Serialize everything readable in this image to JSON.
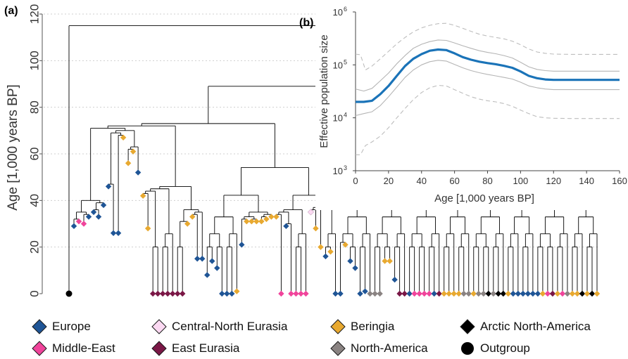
{
  "chart_data": [
    {
      "panel": "(a)",
      "type": "tree",
      "ylabel": "Age [1,000 years BP]",
      "yticks": [
        0,
        20,
        40,
        60,
        80,
        100,
        120
      ],
      "ylim": [
        0,
        120
      ],
      "grid": true,
      "tips": [
        {
          "region": "Outgroup",
          "age": 0
        },
        {
          "region": "Europe",
          "age": 29
        },
        {
          "region": "Middle-East",
          "age": 31
        },
        {
          "region": "Middle-East",
          "age": 30
        },
        {
          "region": "Europe",
          "age": 33
        },
        {
          "region": "Europe",
          "age": 35
        },
        {
          "region": "Europe",
          "age": 33
        },
        {
          "region": "Europe",
          "age": 38
        },
        {
          "region": "Europe",
          "age": 46
        },
        {
          "region": "Europe",
          "age": 26
        },
        {
          "region": "Europe",
          "age": 26
        },
        {
          "region": "Beringia",
          "age": 67
        },
        {
          "region": "Beringia",
          "age": 56
        },
        {
          "region": "Beringia",
          "age": 61
        },
        {
          "region": "Europe",
          "age": 52
        },
        {
          "region": "Beringia",
          "age": 42
        },
        {
          "region": "Beringia",
          "age": 28
        },
        {
          "region": "East Eurasia",
          "age": 0
        },
        {
          "region": "East Eurasia",
          "age": 0
        },
        {
          "region": "East Eurasia",
          "age": 0
        },
        {
          "region": "East Eurasia",
          "age": 0
        },
        {
          "region": "East Eurasia",
          "age": 0
        },
        {
          "region": "East Eurasia",
          "age": 0
        },
        {
          "region": "East Eurasia",
          "age": 0
        },
        {
          "region": "Beringia",
          "age": 30
        },
        {
          "region": "Beringia",
          "age": 33
        },
        {
          "region": "Europe",
          "age": 15
        },
        {
          "region": "Europe",
          "age": 15
        },
        {
          "region": "Europe",
          "age": 8
        },
        {
          "region": "Europe",
          "age": 14
        },
        {
          "region": "Europe",
          "age": 11
        },
        {
          "region": "Europe",
          "age": 0
        },
        {
          "region": "Europe",
          "age": 0
        },
        {
          "region": "Europe",
          "age": 0
        },
        {
          "region": "Beringia",
          "age": 1
        },
        {
          "region": "Europe",
          "age": 21
        },
        {
          "region": "Beringia",
          "age": 31
        },
        {
          "region": "Beringia",
          "age": 31
        },
        {
          "region": "Beringia",
          "age": 31
        },
        {
          "region": "Beringia",
          "age": 31
        },
        {
          "region": "Beringia",
          "age": 32
        },
        {
          "region": "Beringia",
          "age": 33
        },
        {
          "region": "Beringia",
          "age": 33
        },
        {
          "region": "Middle-East",
          "age": 0
        },
        {
          "region": "Europe",
          "age": 29
        },
        {
          "region": "Middle-East",
          "age": 0
        },
        {
          "region": "Middle-East",
          "age": 0
        },
        {
          "region": "Middle-East",
          "age": 0
        },
        {
          "region": "Middle-East",
          "age": 0
        },
        {
          "region": "Central-North Eurasia",
          "age": 35
        },
        {
          "region": "Beringia",
          "age": 28
        },
        {
          "region": "Beringia",
          "age": 20
        },
        {
          "region": "Europe",
          "age": 16
        },
        {
          "region": "Beringia",
          "age": 18
        },
        {
          "region": "Europe",
          "age": 0
        },
        {
          "region": "Europe",
          "age": 0
        },
        {
          "region": "Beringia",
          "age": 21
        },
        {
          "region": "Europe",
          "age": 14
        },
        {
          "region": "Europe",
          "age": 11
        },
        {
          "region": "Europe",
          "age": 0
        },
        {
          "region": "Europe",
          "age": 1
        },
        {
          "region": "North-America",
          "age": 0
        },
        {
          "region": "North-America",
          "age": 0
        },
        {
          "region": "North-America",
          "age": 0
        },
        {
          "region": "Beringia",
          "age": 14
        },
        {
          "region": "Beringia",
          "age": 14
        },
        {
          "region": "Europe",
          "age": 6
        },
        {
          "region": "East Eurasia",
          "age": 0
        },
        {
          "region": "East Eurasia",
          "age": 0
        },
        {
          "region": "Europe",
          "age": 0
        },
        {
          "region": "Middle-East",
          "age": 0
        },
        {
          "region": "Middle-East",
          "age": 0
        },
        {
          "region": "Middle-East",
          "age": 0
        },
        {
          "region": "Middle-East",
          "age": 0
        },
        {
          "region": "Europe",
          "age": 0
        },
        {
          "region": "East Eurasia",
          "age": 0
        },
        {
          "region": "Beringia",
          "age": 0
        },
        {
          "region": "Beringia",
          "age": 0
        },
        {
          "region": "Beringia",
          "age": 0
        },
        {
          "region": "Beringia",
          "age": 0
        },
        {
          "region": "North-America",
          "age": 0
        },
        {
          "region": "North-America",
          "age": 0
        },
        {
          "region": "Beringia",
          "age": 0
        },
        {
          "region": "North-America",
          "age": 0
        },
        {
          "region": "North-America",
          "age": 0
        },
        {
          "region": "Arctic North-America",
          "age": 0
        },
        {
          "region": "North-America",
          "age": 0
        },
        {
          "region": "Arctic North-America",
          "age": 0
        },
        {
          "region": "Arctic North-America",
          "age": 0
        },
        {
          "region": "Beringia",
          "age": 0
        },
        {
          "region": "Europe",
          "age": 0
        },
        {
          "region": "Europe",
          "age": 0
        },
        {
          "region": "Europe",
          "age": 0
        },
        {
          "region": "Europe",
          "age": 0
        },
        {
          "region": "Europe",
          "age": 0
        },
        {
          "region": "Europe",
          "age": 0
        },
        {
          "region": "Beringia",
          "age": 0
        },
        {
          "region": "Middle-East",
          "age": 0
        },
        {
          "region": "East Eurasia",
          "age": 0
        },
        {
          "region": "Beringia",
          "age": 0
        },
        {
          "region": "Middle-East",
          "age": 0
        },
        {
          "region": "North-America",
          "age": 0
        },
        {
          "region": "Beringia",
          "age": 0
        },
        {
          "region": "Beringia",
          "age": 0
        },
        {
          "region": "Arctic North-America",
          "age": 0
        },
        {
          "region": "Beringia",
          "age": 0
        },
        {
          "region": "Arctic North-America",
          "age": 0
        },
        {
          "region": "Beringia",
          "age": 0
        }
      ],
      "nodes": [
        {
          "x": 3,
          "age": 115
        },
        {
          "x": 7,
          "age": 89
        },
        {
          "x": 6,
          "age": 84
        },
        {
          "x": 14,
          "age": 80
        },
        {
          "x": 12,
          "age": 70
        },
        {
          "x": 23,
          "age": 63
        },
        {
          "x": 34,
          "age": 44
        },
        {
          "x": 60,
          "age": 44
        }
      ]
    },
    {
      "panel": "(b)",
      "type": "line",
      "xlabel": "Age [1,000 years BP]",
      "ylabel": "Effective population size",
      "xlim": [
        0,
        160
      ],
      "xticks": [
        0,
        20,
        40,
        60,
        80,
        100,
        120,
        140,
        160
      ],
      "ylim": [
        1000,
        1000000
      ],
      "yscale": "log",
      "yticks": [
        {
          "value": 1000,
          "label": "10",
          "exp": "3"
        },
        {
          "value": 10000,
          "label": "10",
          "exp": "4"
        },
        {
          "value": 100000,
          "label": "10",
          "exp": "5"
        },
        {
          "value": 1000000,
          "label": "10",
          "exp": "6"
        }
      ],
      "series": [
        {
          "role": "median",
          "color": "#1a73b8",
          "x": [
            0,
            5,
            10,
            15,
            20,
            25,
            30,
            35,
            40,
            45,
            50,
            55,
            60,
            65,
            70,
            75,
            80,
            85,
            90,
            95,
            100,
            105,
            110,
            115,
            120,
            125,
            130,
            140,
            150,
            160
          ],
          "y": [
            20000,
            20000,
            21000,
            28000,
            40000,
            62000,
            95000,
            130000,
            160000,
            185000,
            195000,
            190000,
            165000,
            140000,
            125000,
            115000,
            108000,
            103000,
            96000,
            88000,
            75000,
            62000,
            56000,
            53000,
            52000,
            52000,
            52000,
            52000,
            52000,
            52000
          ]
        },
        {
          "role": "inner-upper",
          "color": "#b5b5b5",
          "x": [
            0,
            5,
            10,
            15,
            20,
            25,
            30,
            35,
            40,
            45,
            50,
            55,
            60,
            65,
            70,
            75,
            80,
            85,
            90,
            95,
            100,
            105,
            110,
            115,
            120,
            130,
            140,
            150,
            160
          ],
          "y": [
            35000,
            32000,
            36000,
            50000,
            70000,
            105000,
            150000,
            205000,
            245000,
            275000,
            295000,
            290000,
            260000,
            230000,
            205000,
            185000,
            172000,
            162000,
            150000,
            135000,
            112000,
            92000,
            82000,
            78000,
            76000,
            76000,
            76000,
            76000,
            76000
          ]
        },
        {
          "role": "inner-lower",
          "color": "#b5b5b5",
          "x": [
            0,
            5,
            10,
            15,
            20,
            25,
            30,
            35,
            40,
            45,
            50,
            55,
            60,
            65,
            70,
            75,
            80,
            85,
            90,
            95,
            100,
            105,
            110,
            115,
            120,
            130,
            140,
            150,
            160
          ],
          "y": [
            11000,
            12000,
            13000,
            17000,
            25000,
            38000,
            58000,
            80000,
            100000,
            115000,
            122000,
            118000,
            102000,
            88000,
            78000,
            71000,
            66000,
            62000,
            58000,
            54000,
            47000,
            40000,
            37000,
            35000,
            34000,
            34000,
            34000,
            34000,
            34000
          ]
        },
        {
          "role": "outer-upper",
          "color": "#bdbdbd",
          "dashed": true,
          "x": [
            0,
            3,
            6,
            10,
            15,
            20,
            25,
            30,
            35,
            40,
            45,
            50,
            55,
            60,
            65,
            70,
            75,
            80,
            85,
            90,
            95,
            100,
            105,
            110,
            115,
            120,
            130,
            140,
            150,
            160
          ],
          "y": [
            160000,
            155000,
            80000,
            95000,
            130000,
            180000,
            250000,
            330000,
            420000,
            500000,
            560000,
            600000,
            610000,
            560000,
            490000,
            430000,
            380000,
            350000,
            330000,
            310000,
            280000,
            240000,
            200000,
            175000,
            165000,
            160000,
            158000,
            158000,
            158000,
            158000
          ]
        },
        {
          "role": "outer-lower",
          "color": "#bdbdbd",
          "dashed": true,
          "x": [
            0,
            3,
            6,
            10,
            15,
            20,
            25,
            30,
            35,
            40,
            45,
            50,
            55,
            60,
            65,
            70,
            75,
            80,
            85,
            90,
            95,
            100,
            105,
            110,
            115,
            120,
            130,
            140,
            150,
            160
          ],
          "y": [
            2000,
            2000,
            3000,
            3500,
            4500,
            6500,
            10000,
            15000,
            22000,
            30000,
            37000,
            41000,
            40000,
            34000,
            29000,
            25000,
            22500,
            21000,
            20000,
            18500,
            16500,
            14000,
            12000,
            10500,
            10000,
            9800,
            9700,
            9700,
            9700,
            9700
          ]
        }
      ]
    }
  ],
  "legend": [
    {
      "label": "Europe",
      "color": "#1f5596",
      "shape": "diamond"
    },
    {
      "label": "Central-North Eurasia",
      "color": "#fbd9f2",
      "shape": "diamond"
    },
    {
      "label": "Beringia",
      "color": "#e8a930",
      "shape": "diamond"
    },
    {
      "label": "Arctic North-America",
      "color": "#000000",
      "shape": "diamond"
    },
    {
      "label": "Middle-East",
      "color": "#f0449b",
      "shape": "diamond"
    },
    {
      "label": "East Eurasia",
      "color": "#7a1746",
      "shape": "diamond"
    },
    {
      "label": "North-America",
      "color": "#8a8382",
      "shape": "diamond"
    },
    {
      "label": "Outgroup",
      "color": "#000000",
      "shape": "circle"
    }
  ]
}
